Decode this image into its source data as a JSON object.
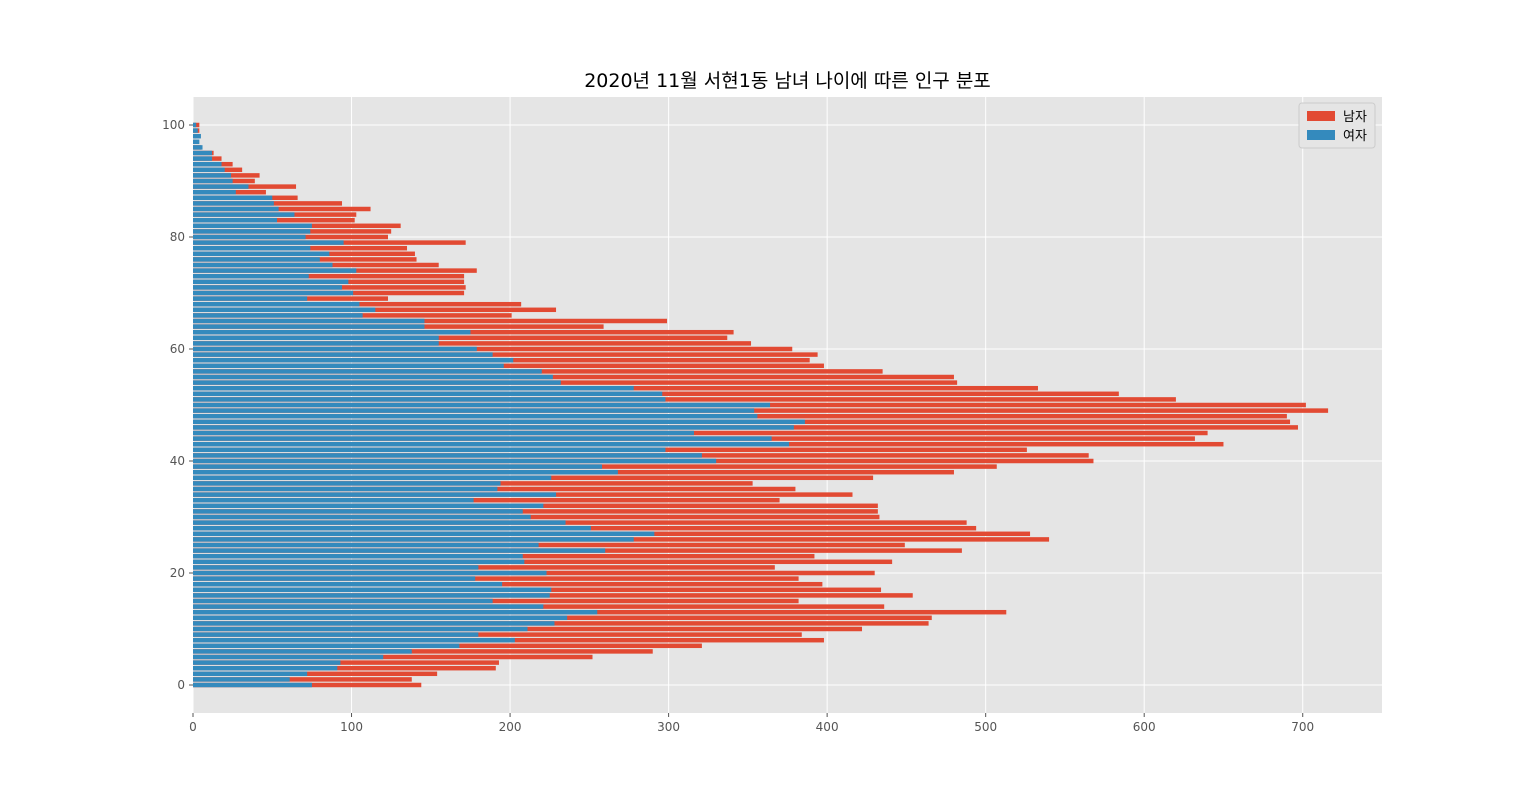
{
  "chart_data": {
    "type": "bar",
    "orientation": "horizontal",
    "title": "2020년 11월 서현1동 남녀 나이에 따른 인구 분포",
    "xlabel": "",
    "ylabel": "",
    "xlim": [
      0,
      750
    ],
    "ylim": [
      -5,
      105
    ],
    "xticks": [
      0,
      100,
      200,
      300,
      400,
      500,
      600,
      700
    ],
    "yticks": [
      0,
      20,
      40,
      60,
      80,
      100
    ],
    "grid": true,
    "legend_position": "top-right",
    "categories": [
      0,
      1,
      2,
      3,
      4,
      5,
      6,
      7,
      8,
      9,
      10,
      11,
      12,
      13,
      14,
      15,
      16,
      17,
      18,
      19,
      20,
      21,
      22,
      23,
      24,
      25,
      26,
      27,
      28,
      29,
      30,
      31,
      32,
      33,
      34,
      35,
      36,
      37,
      38,
      39,
      40,
      41,
      42,
      43,
      44,
      45,
      46,
      47,
      48,
      49,
      50,
      51,
      52,
      53,
      54,
      55,
      56,
      57,
      58,
      59,
      60,
      61,
      62,
      63,
      64,
      65,
      66,
      67,
      68,
      69,
      70,
      71,
      72,
      73,
      74,
      75,
      76,
      77,
      78,
      79,
      80,
      81,
      82,
      83,
      84,
      85,
      86,
      87,
      88,
      89,
      90,
      91,
      92,
      93,
      94,
      95,
      96,
      97,
      98,
      99,
      100
    ],
    "series": [
      {
        "name": "남자",
        "color": "#E24A33",
        "values": [
          144,
          138,
          154,
          191,
          193,
          252,
          290,
          321,
          398,
          384,
          422,
          464,
          466,
          513,
          436,
          382,
          454,
          434,
          397,
          382,
          430,
          367,
          441,
          392,
          485,
          449,
          540,
          528,
          494,
          488,
          433,
          432,
          432,
          370,
          416,
          380,
          353,
          429,
          480,
          507,
          568,
          565,
          526,
          650,
          632,
          640,
          697,
          692,
          690,
          716,
          702,
          620,
          584,
          533,
          482,
          480,
          435,
          398,
          389,
          394,
          378,
          352,
          337,
          341,
          259,
          299,
          201,
          229,
          207,
          123,
          171,
          172,
          171,
          171,
          179,
          155,
          141,
          140,
          135,
          172,
          123,
          125,
          131,
          102,
          103,
          112,
          94,
          66,
          46,
          65,
          39,
          42,
          31,
          25,
          18,
          13,
          5,
          1,
          2,
          4,
          4
        ]
      },
      {
        "name": "여자",
        "color": "#348ABD",
        "values": [
          75,
          61,
          72,
          91,
          93,
          120,
          138,
          168,
          203,
          180,
          211,
          228,
          236,
          255,
          221,
          189,
          225,
          226,
          195,
          178,
          223,
          180,
          209,
          208,
          260,
          218,
          278,
          291,
          251,
          235,
          213,
          208,
          221,
          177,
          229,
          192,
          194,
          226,
          268,
          258,
          330,
          321,
          298,
          376,
          365,
          316,
          379,
          386,
          356,
          354,
          364,
          298,
          296,
          278,
          232,
          227,
          220,
          196,
          202,
          189,
          179,
          155,
          155,
          175,
          146,
          146,
          107,
          115,
          105,
          72,
          101,
          94,
          98,
          73,
          103,
          88,
          80,
          86,
          74,
          95,
          71,
          74,
          75,
          53,
          64,
          54,
          51,
          50,
          27,
          35,
          25,
          24,
          20,
          18,
          12,
          12,
          6,
          4,
          5,
          3,
          2
        ]
      }
    ]
  }
}
